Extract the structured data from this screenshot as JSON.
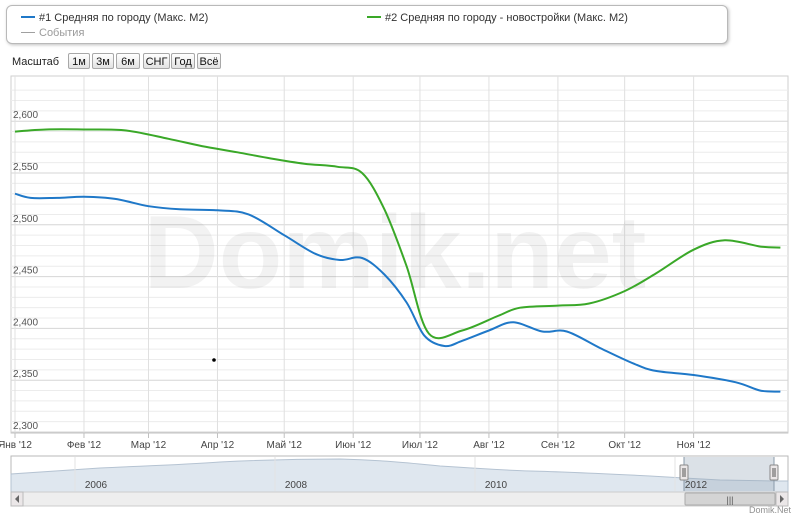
{
  "legend": {
    "series1": "#1 Средняя по городу (Макс. М2)",
    "series2": "#2 Средняя по городу - новостройки (Макс. М2)",
    "events": "События"
  },
  "range_selector": {
    "label": "Масштаб",
    "buttons": [
      "1м",
      "3м",
      "6м",
      "СНГ",
      "Год",
      "Всё"
    ]
  },
  "watermark": "Domik.net",
  "credits": "Domik.Net",
  "navigator": {
    "years": [
      "2006",
      "2008",
      "2010",
      "2012"
    ],
    "handle_glyph": "|||"
  },
  "colors": {
    "series1": "#1f78c8",
    "series2": "#3aa828",
    "events": "#a0a0a0",
    "navigator_fill": "#dfe7ef",
    "navigator_selection": "#99aabb"
  },
  "chart_data": {
    "type": "line",
    "title": "",
    "xlabel": "",
    "ylabel": "",
    "ylim": [
      2300,
      2630
    ],
    "x_ticks": [
      "Янв '12",
      "Фев '12",
      "Мар '12",
      "Апр '12",
      "Май '12",
      "Июн '12",
      "Июл '12",
      "Авг '12",
      "Сен '12",
      "Окт '12",
      "Ноя '12"
    ],
    "y_ticks": [
      2300,
      2350,
      2400,
      2450,
      2500,
      2550,
      2600
    ],
    "y_tick_labels": [
      "2,300",
      "2,350",
      "2,400",
      "2,450",
      "2,500",
      "2,550",
      "2,600"
    ],
    "x_range": [
      "2012-01-01",
      "2012-12-10"
    ],
    "grid": true,
    "legend_position": "top",
    "series": [
      {
        "name": "#1 Средняя по городу (Макс. М2)",
        "color": "#1f78c8",
        "points": [
          [
            "2012-01-01",
            2530
          ],
          [
            "2012-01-08",
            2526
          ],
          [
            "2012-01-20",
            2526
          ],
          [
            "2012-02-01",
            2527
          ],
          [
            "2012-02-15",
            2525
          ],
          [
            "2012-03-01",
            2518
          ],
          [
            "2012-03-15",
            2515
          ],
          [
            "2012-04-01",
            2514
          ],
          [
            "2012-04-15",
            2510
          ],
          [
            "2012-05-01",
            2490
          ],
          [
            "2012-05-15",
            2472
          ],
          [
            "2012-05-26",
            2466
          ],
          [
            "2012-06-05",
            2468
          ],
          [
            "2012-06-15",
            2452
          ],
          [
            "2012-06-25",
            2425
          ],
          [
            "2012-07-03",
            2393
          ],
          [
            "2012-07-12",
            2383
          ],
          [
            "2012-07-20",
            2388
          ],
          [
            "2012-08-01",
            2398
          ],
          [
            "2012-08-12",
            2406
          ],
          [
            "2012-08-25",
            2397
          ],
          [
            "2012-09-05",
            2397
          ],
          [
            "2012-09-20",
            2381
          ],
          [
            "2012-10-05",
            2366
          ],
          [
            "2012-10-15",
            2359
          ],
          [
            "2012-11-01",
            2355
          ],
          [
            "2012-11-20",
            2348
          ],
          [
            "2012-12-01",
            2340
          ],
          [
            "2012-12-10",
            2339
          ]
        ]
      },
      {
        "name": "#2 Средняя по городу - новостройки (Макс. М2)",
        "color": "#3aa828",
        "points": [
          [
            "2012-01-01",
            2590
          ],
          [
            "2012-01-15",
            2592
          ],
          [
            "2012-02-01",
            2592
          ],
          [
            "2012-02-20",
            2591
          ],
          [
            "2012-03-10",
            2583
          ],
          [
            "2012-03-25",
            2576
          ],
          [
            "2012-04-10",
            2570
          ],
          [
            "2012-04-25",
            2564
          ],
          [
            "2012-05-10",
            2559
          ],
          [
            "2012-05-25",
            2556
          ],
          [
            "2012-06-05",
            2550
          ],
          [
            "2012-06-15",
            2515
          ],
          [
            "2012-06-25",
            2460
          ],
          [
            "2012-07-05",
            2395
          ],
          [
            "2012-07-20",
            2398
          ],
          [
            "2012-08-05",
            2412
          ],
          [
            "2012-08-15",
            2420
          ],
          [
            "2012-09-01",
            2422
          ],
          [
            "2012-09-15",
            2424
          ],
          [
            "2012-10-01",
            2436
          ],
          [
            "2012-10-15",
            2453
          ],
          [
            "2012-11-01",
            2476
          ],
          [
            "2012-11-15",
            2485
          ],
          [
            "2012-12-01",
            2479
          ],
          [
            "2012-12-10",
            2478
          ]
        ]
      }
    ]
  }
}
